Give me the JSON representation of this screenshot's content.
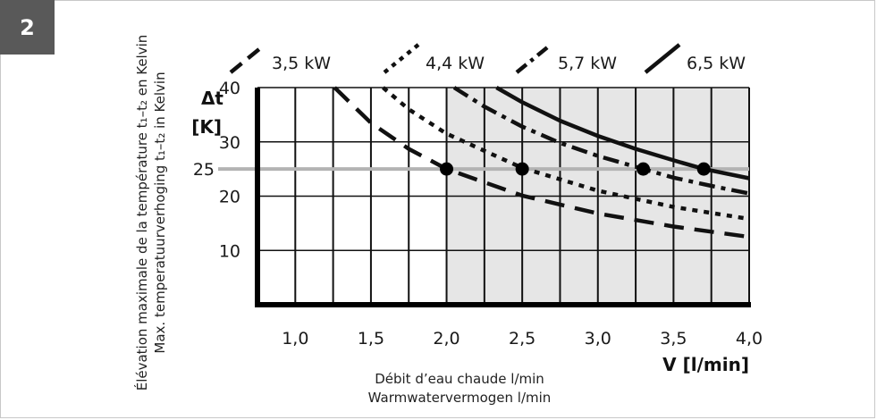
{
  "figure": {
    "number": "2"
  },
  "side_labels": [
    "Élévation maximale de la température t₁–t₂ en Kelvin",
    "Max. temperatuurverhoging t₁–t₂ in Kelvin"
  ],
  "caption": [
    "Débit d’eau chaude l/min",
    "Warmwatervermogen l/min"
  ],
  "colors": {
    "curve": "#111111",
    "grid": "#111111",
    "shaded": "#e6e6e6",
    "reference_line": "#b3b3b3",
    "badge": "#595959"
  },
  "chart_data": {
    "type": "line",
    "title": "",
    "ylabel_lines": [
      "Δt",
      "[K]"
    ],
    "xlabel": "V [l/min]",
    "xlim": [
      0.75,
      4.0
    ],
    "ylim": [
      0,
      40
    ],
    "x_ticks": [
      "1,0",
      "1,5",
      "2,0",
      "2,5",
      "3,0",
      "3,5",
      "4,0"
    ],
    "x_tick_values": [
      1.0,
      1.5,
      2.0,
      2.5,
      3.0,
      3.5,
      4.0
    ],
    "y_ticks": [
      "10",
      "20",
      "30",
      "40"
    ],
    "y_tick_values": [
      10,
      20,
      30,
      40
    ],
    "reference_line": {
      "value": 25,
      "label": "25"
    },
    "shaded_range": [
      2.0,
      4.0
    ],
    "grid": true,
    "legend_position": "top",
    "series": [
      {
        "name": "3,5 kW",
        "dash": "dashed",
        "x": [
          1.26,
          1.5,
          1.75,
          2.0,
          2.5,
          3.0,
          3.5,
          4.0
        ],
        "y": [
          40.0,
          33.5,
          28.7,
          25.0,
          20.1,
          16.8,
          14.4,
          12.5
        ]
      },
      {
        "name": "4,4 kW",
        "dash": "dotted",
        "x": [
          1.58,
          1.75,
          2.0,
          2.5,
          3.0,
          3.5,
          4.0
        ],
        "y": [
          40.0,
          36.0,
          31.5,
          25.2,
          21.0,
          18.0,
          15.8
        ]
      },
      {
        "name": "5,7 kW",
        "dash": "dashdot",
        "x": [
          2.05,
          2.25,
          2.5,
          2.75,
          3.0,
          3.3,
          3.5,
          3.75,
          4.0
        ],
        "y": [
          40.0,
          36.5,
          32.8,
          29.8,
          27.4,
          25.0,
          23.4,
          21.9,
          20.5
        ]
      },
      {
        "name": "6,5 kW",
        "dash": "solid",
        "x": [
          2.33,
          2.5,
          2.75,
          3.0,
          3.25,
          3.5,
          3.7,
          4.0
        ],
        "y": [
          40.0,
          37.3,
          33.9,
          31.1,
          28.7,
          26.6,
          25.0,
          23.3
        ]
      }
    ],
    "markers": [
      {
        "x": 2.0,
        "y": 25
      },
      {
        "x": 2.5,
        "y": 25
      },
      {
        "x": 3.3,
        "y": 25
      },
      {
        "x": 3.7,
        "y": 25
      }
    ]
  }
}
